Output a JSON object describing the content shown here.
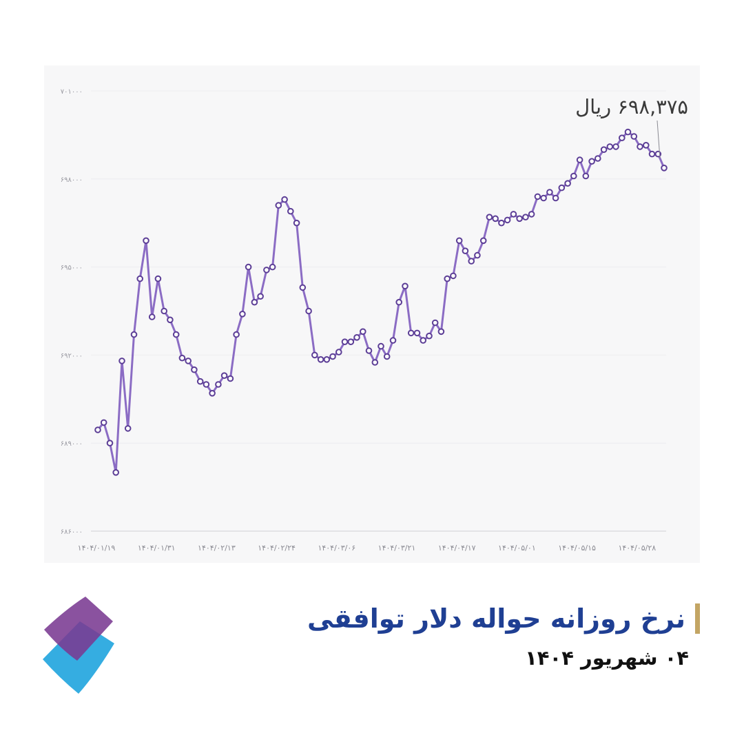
{
  "colors": {
    "line": "#8b6cc4",
    "marker_stroke": "#5c3e96",
    "title": "#1f3f93",
    "title_bar": "#c3a564",
    "logo_purple": "#7a3a92",
    "logo_blue": "#2aa9df"
  },
  "logo": {
    "name": "diamond-logo"
  },
  "title": {
    "text": "نرخ روزانه حواله دلار توافقی",
    "date": "۰۴ شهریور ۱۴۰۴"
  },
  "callout": {
    "text": "۶۹۸,۳۷۵ ریال"
  },
  "chart_data": {
    "type": "line",
    "title": "",
    "xlabel": "",
    "ylabel": "",
    "ylim": [
      686000,
      701000
    ],
    "y_ticks": [
      686000,
      689000,
      692000,
      695000,
      698000,
      701000
    ],
    "y_tick_labels": [
      "۶۸۶۰۰۰",
      "۶۸۹۰۰۰",
      "۶۹۲۰۰۰",
      "۶۹۵۰۰۰",
      "۶۹۸۰۰۰",
      "۷۰۱۰۰۰"
    ],
    "x_tick_labels": [
      "۱۴۰۴/۰۱/۱۹",
      "۱۴۰۴/۰۱/۳۱",
      "۱۴۰۴/۰۲/۱۳",
      "۱۴۰۴/۰۲/۲۴",
      "۱۴۰۴/۰۳/۰۶",
      "۱۴۰۴/۰۳/۲۱",
      "۱۴۰۴/۰۴/۱۷",
      "۱۴۰۴/۰۵/۰۱",
      "۱۴۰۴/۰۵/۱۵",
      "۱۴۰۴/۰۵/۲۸"
    ],
    "grid": true,
    "series": [
      {
        "values": [
          689450,
          689700,
          689000,
          688000,
          691800,
          689500,
          692700,
          694600,
          695900,
          693300,
          694600,
          693500,
          693200,
          692700,
          691900,
          691800,
          691500,
          691100,
          691000,
          690700,
          691000,
          691300,
          691200,
          692700,
          693400,
          695000,
          693800,
          694000,
          694900,
          695000,
          697100,
          697300,
          696900,
          696500,
          694300,
          693500,
          692000,
          691850,
          691850,
          691950,
          692100,
          692450,
          692450,
          692600,
          692800,
          692150,
          691750,
          692300,
          691950,
          692500,
          693800,
          694350,
          692750,
          692750,
          692500,
          692650,
          693100,
          692800,
          694600,
          694700,
          695900,
          695550,
          695200,
          695400,
          695900,
          696700,
          696650,
          696500,
          696600,
          696800,
          696650,
          696700,
          696800,
          697400,
          697350,
          697550,
          697350,
          697700,
          697850,
          698100,
          698650,
          698100,
          698600,
          698700,
          699000,
          699100,
          699100,
          699400,
          699600,
          699450,
          699100,
          699150,
          698850,
          698850,
          698375
        ]
      }
    ],
    "latest_value": 698375
  }
}
